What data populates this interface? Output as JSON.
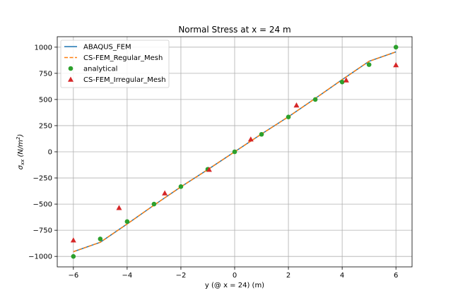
{
  "chart_data": {
    "type": "line",
    "title": "Normal Stress at x = 24 m",
    "xlabel": "y (@ x = 24) (m)",
    "ylabel_main": "σ",
    "ylabel_sub": "xx",
    "ylabel_unit_open": " (N/m",
    "ylabel_unit_sup": "2",
    "ylabel_unit_close": ")",
    "xlim": [
      -6.6,
      6.6
    ],
    "ylim": [
      -1100,
      1100
    ],
    "xticks": [
      -6,
      -4,
      -2,
      0,
      2,
      4,
      6
    ],
    "xtick_labels": [
      "−6",
      "−4",
      "−2",
      "0",
      "2",
      "4",
      "6"
    ],
    "yticks": [
      -1000,
      -750,
      -500,
      -250,
      0,
      250,
      500,
      750,
      1000
    ],
    "ytick_labels": [
      "−1000",
      "−750",
      "−500",
      "−250",
      "0",
      "250",
      "500",
      "750",
      "1000"
    ],
    "grid": true,
    "legend_position": "top-left",
    "series": [
      {
        "name": "ABAQUS_FEM",
        "style": "solid-line",
        "color": "#1f77b4",
        "x": [
          -6,
          -5,
          -4,
          -3,
          -2,
          -1,
          0,
          1,
          2,
          3,
          4,
          5,
          6
        ],
        "y": [
          -955,
          -865,
          -690,
          -510,
          -335,
          -170,
          0,
          170,
          335,
          510,
          690,
          865,
          955
        ]
      },
      {
        "name": "CS-FEM_Regular_Mesh",
        "style": "dashed-line",
        "color": "#ff7f0e",
        "x": [
          -6,
          -5,
          -4,
          -3,
          -2,
          -1,
          0,
          1,
          2,
          3,
          4,
          5,
          6
        ],
        "y": [
          -955,
          -865,
          -690,
          -510,
          -335,
          -170,
          0,
          170,
          335,
          510,
          690,
          865,
          955
        ]
      },
      {
        "name": "analytical",
        "style": "circle-marker",
        "color": "#2ca02c",
        "x": [
          -6,
          -5,
          -4,
          -3,
          -2,
          -1,
          0,
          1,
          2,
          3,
          4,
          5,
          6
        ],
        "y": [
          -1000,
          -833,
          -667,
          -500,
          -333,
          -167,
          0,
          167,
          333,
          500,
          667,
          833,
          1000
        ]
      },
      {
        "name": "CS-FEM_Irregular_Mesh",
        "style": "triangle-marker",
        "color": "#d62728",
        "x": [
          -6,
          -4.3,
          -2.6,
          -0.95,
          0.6,
          2.3,
          4.15,
          6
        ],
        "y": [
          -845,
          -535,
          -395,
          -170,
          120,
          445,
          685,
          830
        ]
      }
    ]
  }
}
